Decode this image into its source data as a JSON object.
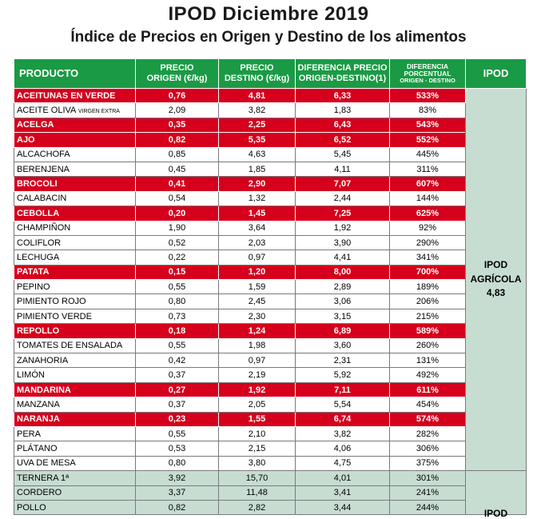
{
  "title": "IPOD Diciembre 2019",
  "subtitle": "Índice de Precios en Origen y Destino de los alimentos",
  "colors": {
    "header_green": "#1a9a44",
    "highlight_red": "#d6001c",
    "ipod_panel": "#c7ddd2"
  },
  "headers": {
    "producto": "PRODUCTO",
    "origen_1": "PRECIO",
    "origen_2": "ORIGEN (€/kg)",
    "destino_1": "PRECIO",
    "destino_2": "DESTINO (€/kg)",
    "diferencia_1": "DIFERENCIA PRECIO",
    "diferencia_2": "ORIGEN-DESTINO(1)",
    "porcentual_1": "DIFERENCIA",
    "porcentual_2": "PORCENTUAL",
    "porcentual_3": "ORIGEN - DESTINO",
    "ipod": "IPOD"
  },
  "rows": [
    {
      "producto": "ACEITUNAS EN VERDE",
      "origen": "0,76",
      "destino": "4,81",
      "diferencia": "6,33",
      "porcentual": "533%"
    },
    {
      "producto": "ACEITE OLIVA",
      "sufijo": "VIRGEN EXTRA",
      "origen": "2,09",
      "destino": "3,82",
      "diferencia": "1,83",
      "porcentual": "83%"
    },
    {
      "producto": "ACELGA",
      "origen": "0,35",
      "destino": "2,25",
      "diferencia": "6,43",
      "porcentual": "543%"
    },
    {
      "producto": "AJO",
      "origen": "0,82",
      "destino": "5,35",
      "diferencia": "6,52",
      "porcentual": "552%"
    },
    {
      "producto": "ALCACHOFA",
      "origen": "0,85",
      "destino": "4,63",
      "diferencia": "5,45",
      "porcentual": "445%"
    },
    {
      "producto": "BERENJENA",
      "origen": "0,45",
      "destino": "1,85",
      "diferencia": "4,11",
      "porcentual": "311%"
    },
    {
      "producto": "BROCOLI",
      "origen": "0,41",
      "destino": "2,90",
      "diferencia": "7,07",
      "porcentual": "607%"
    },
    {
      "producto": "CALABACIN",
      "origen": "0,54",
      "destino": "1,32",
      "diferencia": "2,44",
      "porcentual": "144%"
    },
    {
      "producto": "CEBOLLA",
      "origen": "0,20",
      "destino": "1,45",
      "diferencia": "7,25",
      "porcentual": "625%"
    },
    {
      "producto": "CHAMPIÑON",
      "origen": "1,90",
      "destino": "3,64",
      "diferencia": "1,92",
      "porcentual": "92%"
    },
    {
      "producto": "COLIFLOR",
      "origen": "0,52",
      "destino": "2,03",
      "diferencia": "3,90",
      "porcentual": "290%"
    },
    {
      "producto": "LECHUGA",
      "origen": "0,22",
      "destino": "0,97",
      "diferencia": "4,41",
      "porcentual": "341%"
    },
    {
      "producto": "PATATA",
      "origen": "0,15",
      "destino": "1,20",
      "diferencia": "8,00",
      "porcentual": "700%"
    },
    {
      "producto": "PEPINO",
      "origen": "0,55",
      "destino": "1,59",
      "diferencia": "2,89",
      "porcentual": "189%"
    },
    {
      "producto": "PIMIENTO ROJO",
      "origen": "0,80",
      "destino": "2,45",
      "diferencia": "3,06",
      "porcentual": "206%"
    },
    {
      "producto": "PIMIENTO VERDE",
      "origen": "0,73",
      "destino": "2,30",
      "diferencia": "3,15",
      "porcentual": "215%"
    },
    {
      "producto": "REPOLLO",
      "origen": "0,18",
      "destino": "1,24",
      "diferencia": "6,89",
      "porcentual": "589%"
    },
    {
      "producto": "TOMATES DE ENSALADA",
      "origen": "0,55",
      "destino": "1,98",
      "diferencia": "3,60",
      "porcentual": "260%"
    },
    {
      "producto": "ZANAHORIA",
      "origen": "0,42",
      "destino": "0,97",
      "diferencia": "2,31",
      "porcentual": "131%"
    },
    {
      "producto": "LIMÓN",
      "origen": "0,37",
      "destino": "2,19",
      "diferencia": "5,92",
      "porcentual": "492%"
    },
    {
      "producto": "MANDARINA",
      "origen": "0,27",
      "destino": "1,92",
      "diferencia": "7,11",
      "porcentual": "611%"
    },
    {
      "producto": "MANZANA",
      "origen": "0,37",
      "destino": "2,05",
      "diferencia": "5,54",
      "porcentual": "454%"
    },
    {
      "producto": "NARANJA",
      "origen": "0,23",
      "destino": "1,55",
      "diferencia": "6,74",
      "porcentual": "574%"
    },
    {
      "producto": "PERA",
      "origen": "0,55",
      "destino": "2,10",
      "diferencia": "3,82",
      "porcentual": "282%"
    },
    {
      "producto": "PLÁTANO",
      "origen": "0,53",
      "destino": "2,15",
      "diferencia": "4,06",
      "porcentual": "306%"
    },
    {
      "producto": "UVA DE MESA",
      "origen": "0,80",
      "destino": "3,80",
      "diferencia": "4,75",
      "porcentual": "375%"
    },
    {
      "producto": "TERNERA 1ª",
      "origen": "3,92",
      "destino": "15,70",
      "diferencia": "4,01",
      "porcentual": "301%"
    },
    {
      "producto": "CORDERO",
      "origen": "3,37",
      "destino": "11,48",
      "diferencia": "3,41",
      "porcentual": "241%"
    },
    {
      "producto": "POLLO",
      "origen": "0,82",
      "destino": "2,82",
      "diferencia": "3,44",
      "porcentual": "244%"
    }
  ],
  "ipod_agricola": {
    "line1": "IPOD",
    "line2": "AGRÍCOLA",
    "value": "4,83"
  },
  "ipod_ganadero": {
    "line1": "IPOD"
  }
}
